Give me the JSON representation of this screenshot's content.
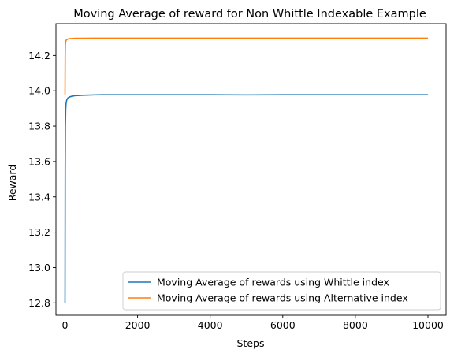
{
  "chart_data": {
    "type": "line",
    "title": "Moving Average of reward for Non Whittle Indexable Example",
    "xlabel": "Steps",
    "ylabel": "Reward",
    "xlim": [
      -250,
      10500
    ],
    "ylim": [
      12.73,
      14.38
    ],
    "xticks": [
      0,
      2000,
      4000,
      6000,
      8000,
      10000
    ],
    "yticks": [
      12.8,
      13.0,
      13.2,
      13.4,
      13.6,
      13.8,
      14.0,
      14.2
    ],
    "xtick_labels": [
      "0",
      "2000",
      "4000",
      "6000",
      "8000",
      "10000"
    ],
    "ytick_labels": [
      "12.8",
      "13.0",
      "13.2",
      "13.4",
      "13.6",
      "13.8",
      "14.0",
      "14.2"
    ],
    "grid": false,
    "legend_position": "lower-right",
    "series": [
      {
        "name": "Moving Average of rewards using Whittle index",
        "color": "#1f77b4",
        "x": [
          0,
          5,
          10,
          20,
          30,
          50,
          80,
          120,
          200,
          300,
          500,
          800,
          1000,
          2000,
          3000,
          4000,
          5000,
          6000,
          7000,
          8000,
          9000,
          10000
        ],
        "y": [
          12.8,
          13.55,
          13.8,
          13.9,
          13.93,
          13.95,
          13.96,
          13.965,
          13.97,
          13.973,
          13.975,
          13.977,
          13.978,
          13.978,
          13.978,
          13.978,
          13.977,
          13.978,
          13.978,
          13.978,
          13.978,
          13.978
        ]
      },
      {
        "name": "Moving Average of rewards using Alternative index",
        "color": "#ff7f0e",
        "x": [
          0,
          5,
          10,
          20,
          30,
          50,
          80,
          120,
          200,
          300,
          500,
          800,
          1000,
          2000,
          3000,
          4000,
          5000,
          6000,
          7000,
          8000,
          9000,
          10000
        ],
        "y": [
          13.98,
          14.2,
          14.26,
          14.28,
          14.285,
          14.29,
          14.293,
          14.295,
          14.296,
          14.297,
          14.297,
          14.298,
          14.298,
          14.298,
          14.298,
          14.298,
          14.298,
          14.298,
          14.298,
          14.298,
          14.298,
          14.298
        ]
      }
    ]
  }
}
